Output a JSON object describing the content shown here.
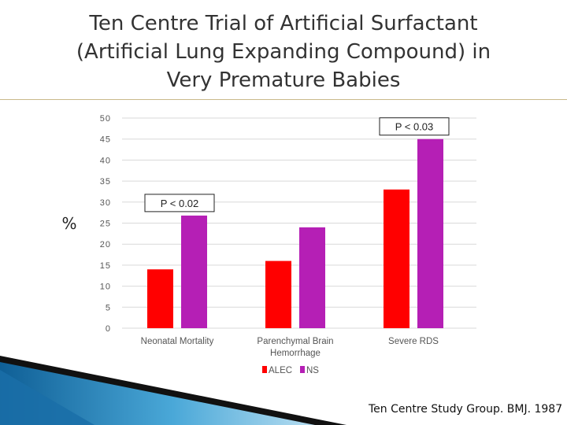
{
  "slide": {
    "title_lines": [
      "Ten Centre Trial of Artificial Surfactant",
      "(Artificial Lung Expanding Compound) in",
      "Very Premature Babies"
    ],
    "source": "Ten Centre Study Group. BMJ. 1987"
  },
  "chart_data": {
    "type": "bar",
    "categories": [
      [
        "Neonatal Mortality"
      ],
      [
        "Parenchymal Brain",
        "Hemorrhage"
      ],
      [
        "Severe RDS"
      ]
    ],
    "series": [
      {
        "name": "ALEC",
        "color": "#ff0000",
        "values": [
          14,
          16,
          33
        ]
      },
      {
        "name": "NS",
        "color": "#b51fb5",
        "values": [
          26.8,
          24,
          45
        ]
      }
    ],
    "ylabel": "%",
    "ylim": [
      0,
      50
    ],
    "yticks": [
      0,
      5,
      10,
      15,
      20,
      25,
      30,
      35,
      40,
      45,
      50
    ],
    "grid": true,
    "legend_position": "bottom",
    "annotations": [
      {
        "text": "P < 0.02",
        "category_index": 0
      },
      {
        "text": "P < 0.03",
        "category_index": 2
      }
    ]
  },
  "decor": {
    "accent": "#1a6fa8",
    "accent_light": "#7fc3e6",
    "rule_color": "#c9b98a"
  }
}
